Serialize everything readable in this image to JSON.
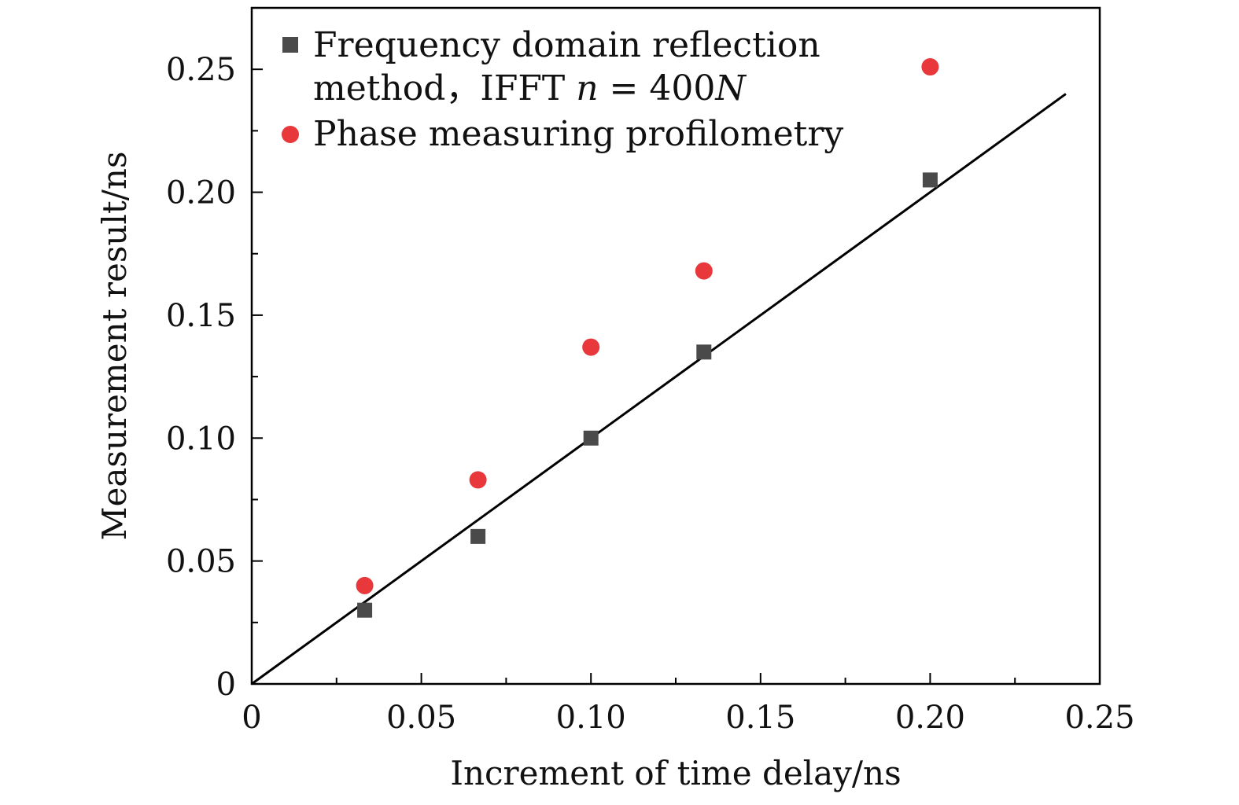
{
  "chart_data": {
    "type": "scatter",
    "xlabel": "Increment of time delay/ns",
    "ylabel": "Measurement result/ns",
    "xlim": [
      0,
      0.25
    ],
    "ylim": [
      0,
      0.275
    ],
    "x_ticks": [
      "0",
      "0.05",
      "0.10",
      "0.15",
      "0.20",
      "0.25"
    ],
    "y_ticks": [
      "0",
      "0.05",
      "0.10",
      "0.15",
      "0.20",
      "0.25"
    ],
    "grid": false,
    "legend_position": "top-left",
    "series": [
      {
        "name": "Frequency domain reflection method，IFFT n = 400N",
        "name_parts": {
          "line1": "Frequency domain reflection",
          "line2_text": "method，IFFT ",
          "line2_var": "n",
          "line2_eq": " = 400",
          "line2_var2": "N"
        },
        "marker": "square",
        "color": "#4a4a4a",
        "points": [
          {
            "x": 0.0333,
            "y": 0.03
          },
          {
            "x": 0.0667,
            "y": 0.06
          },
          {
            "x": 0.1,
            "y": 0.1
          },
          {
            "x": 0.1333,
            "y": 0.135
          },
          {
            "x": 0.2,
            "y": 0.205
          }
        ]
      },
      {
        "name": "Phase measuring profilometry",
        "marker": "circle",
        "color": "#e8383b",
        "points": [
          {
            "x": 0.0333,
            "y": 0.04
          },
          {
            "x": 0.0667,
            "y": 0.083
          },
          {
            "x": 0.1,
            "y": 0.137
          },
          {
            "x": 0.1333,
            "y": 0.168
          },
          {
            "x": 0.2,
            "y": 0.251
          }
        ]
      }
    ],
    "reference_line": {
      "color": "#000000",
      "from": {
        "x": 0,
        "y": 0
      },
      "to": {
        "x": 0.24,
        "y": 0.24
      }
    }
  }
}
